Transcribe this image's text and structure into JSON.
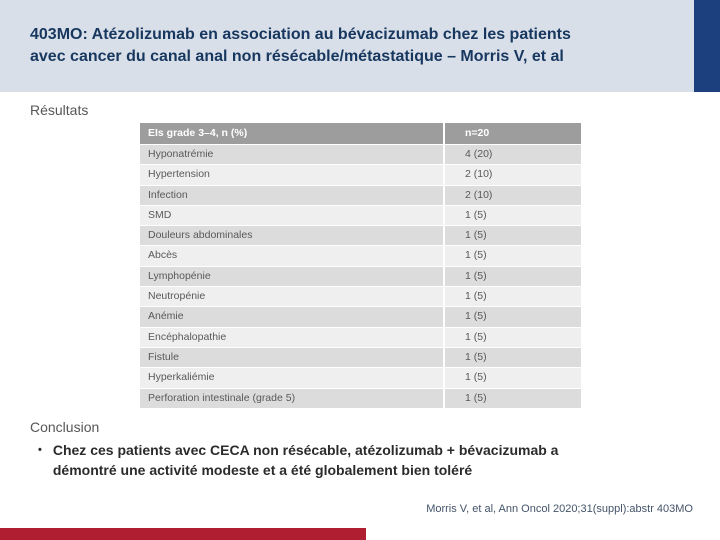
{
  "slide": {
    "title": "403MO: Atézolizumab en association au bévacizumab chez les patients\navec cancer du canal anal non résécable/métastatique – Morris V, et al",
    "section_heading": "Résultats",
    "conclusion_heading": "Conclusion",
    "bullet_glyph": "•",
    "conclusion_bullet": "Chez ces patients avec CECA non résécable, atézolizumab + bévacizumab a\ndémontré une activité modeste et a été globalement bien toléré",
    "reference": "Morris V, et al, Ann Oncol 2020;31(suppl):abstr 403MO"
  },
  "table": {
    "header": {
      "label": "EIs grade 3–4, n (%)",
      "value": "n=20"
    },
    "rows": [
      {
        "label": "Hyponatrémie",
        "value": "4 (20)"
      },
      {
        "label": "Hypertension",
        "value": "2 (10)"
      },
      {
        "label": "Infection",
        "value": "2 (10)"
      },
      {
        "label": "SMD",
        "value": "1 (5)"
      },
      {
        "label": "Douleurs abdominales",
        "value": "1 (5)"
      },
      {
        "label": "Abcès",
        "value": "1 (5)"
      },
      {
        "label": "Lymphopénie",
        "value": "1 (5)"
      },
      {
        "label": "Neutropénie",
        "value": "1 (5)"
      },
      {
        "label": "Anémie",
        "value": "1 (5)"
      },
      {
        "label": "Encéphalopathie",
        "value": "1 (5)"
      },
      {
        "label": "Fistule",
        "value": "1 (5)"
      },
      {
        "label": "Hyperkaliémie",
        "value": "1 (5)"
      },
      {
        "label": "Perforation intestinale (grade 5)",
        "value": "1 (5)"
      }
    ]
  },
  "colors": {
    "accent_navy": "#17375e",
    "corner_navy": "#1c3f7d",
    "band_bg": "#d9dfe9",
    "table_header_bg": "#9d9d9d",
    "table_text": "#595959",
    "row_alt_dark": "#dcdcdc",
    "row_alt_light": "#efefef",
    "heading_gray": "#575757",
    "reference_color": "#44546a",
    "red_bar": "#b01e31"
  }
}
